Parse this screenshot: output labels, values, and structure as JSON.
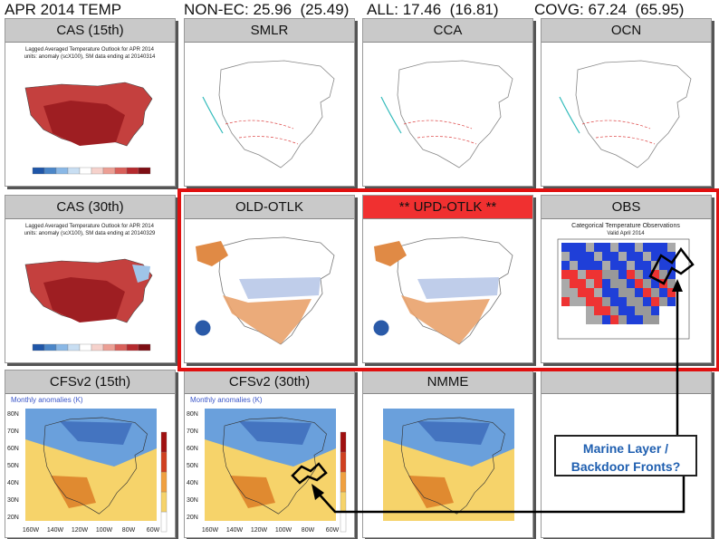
{
  "header": {
    "title": "APR 2014 TEMP",
    "stats": [
      "NON-EC: 25.96  (25.49)",
      "ALL: 17.46  (16.81)",
      "COVG: 67.24  (65.95)"
    ]
  },
  "panels": [
    {
      "title": "CAS (15th)",
      "subtitle": [
        "Lagged Averaged Temperature Outlook for APR 2014",
        "units: anomaly (scX100), SM data ending at 20140314"
      ]
    },
    {
      "title": "SMLR"
    },
    {
      "title": "CCA"
    },
    {
      "title": "OCN"
    },
    {
      "title": "CAS (30th)",
      "subtitle": [
        "Lagged Averaged Temperature Outlook for APR 2014",
        "units: anomaly (scX100), SM data ending at 20140329"
      ]
    },
    {
      "title": "OLD-OTLK"
    },
    {
      "title": "** UPD-OTLK **"
    },
    {
      "title": "OBS",
      "subtitle": [
        "Categorical Temperature Observations",
        "Valid April 2014"
      ]
    },
    {
      "title": "CFSv2 (15th)",
      "subtitle": [
        "Monthly anomalies (K)"
      ]
    },
    {
      "title": "CFSv2 (30th)",
      "subtitle": [
        "Monthly anomalies (K)"
      ]
    },
    {
      "title": "NMME"
    }
  ],
  "cfs_axes": {
    "lat": [
      "80N",
      "70N",
      "60N",
      "50N",
      "40N",
      "30N",
      "20N"
    ],
    "lon": [
      "160W",
      "140W",
      "120W",
      "100W",
      "80W",
      "60W"
    ]
  },
  "callout": {
    "lines": [
      "Marine Layer /",
      "Backdoor Fronts?"
    ]
  }
}
